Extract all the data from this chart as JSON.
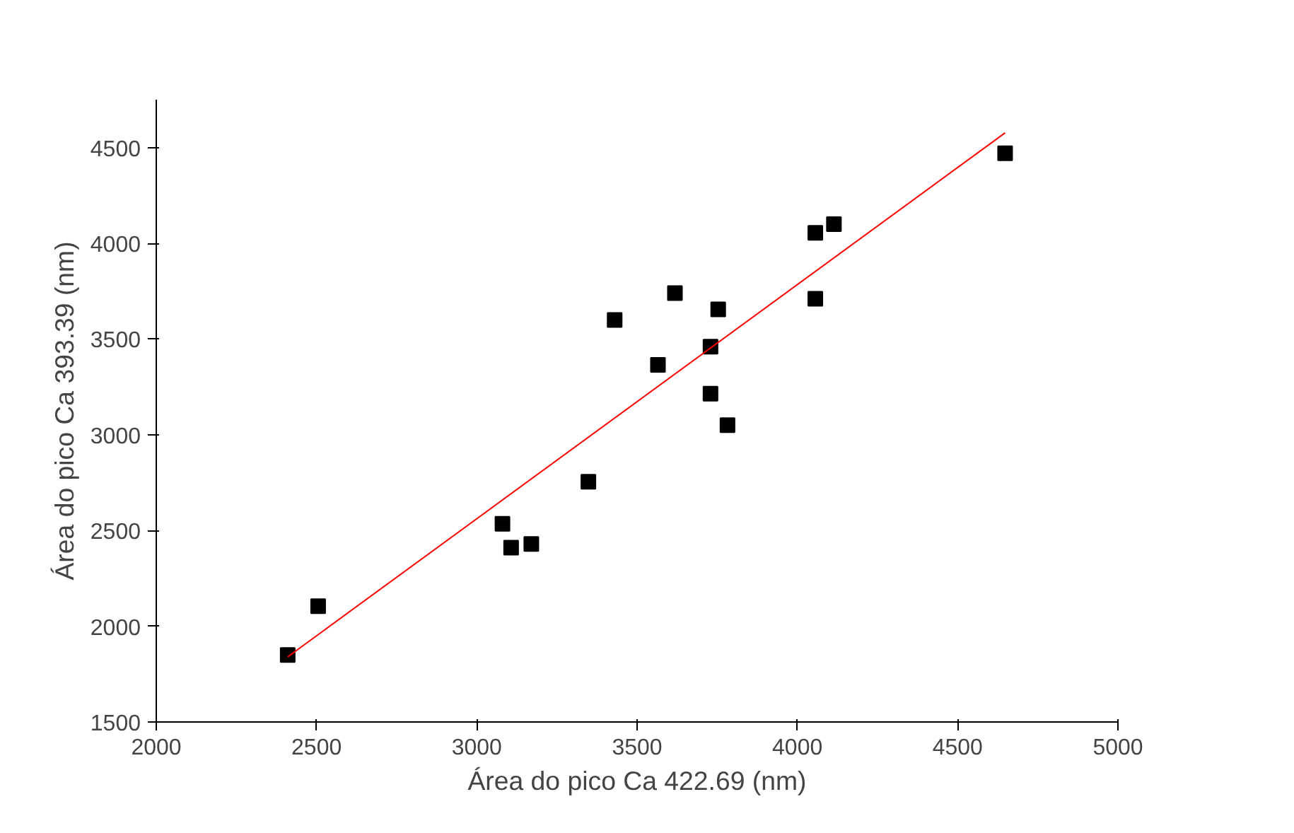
{
  "chart_data": {
    "type": "scatter",
    "xlabel": "Área do pico Ca 422.69 (nm)",
    "ylabel": "Área do pico Ca 393.39 (nm)",
    "xlim": [
      2000,
      5000
    ],
    "ylim": [
      1500,
      4750
    ],
    "xticks": [
      2000,
      2500,
      3000,
      3500,
      4000,
      4500,
      5000
    ],
    "yticks": [
      1500,
      2000,
      2500,
      3000,
      3500,
      4000,
      4500
    ],
    "grid": false,
    "series": [
      {
        "marker": "square",
        "color": "#000000",
        "x": [
          2410,
          2505,
          3080,
          3107,
          3170,
          3348,
          3430,
          3565,
          3618,
          3729,
          3729,
          3753,
          3782,
          4056,
          4056,
          4114,
          4648
        ],
        "values": [
          1850,
          2105,
          2535,
          2410,
          2430,
          2755,
          3600,
          3365,
          3740,
          3460,
          3215,
          3655,
          3050,
          4055,
          3710,
          4100,
          4470
        ]
      },
      {
        "type": "line",
        "marker": "none",
        "color": "#ff0000",
        "x": [
          2410,
          4648
        ],
        "values": [
          1840,
          4577
        ],
        "line_style": "solid"
      }
    ]
  }
}
